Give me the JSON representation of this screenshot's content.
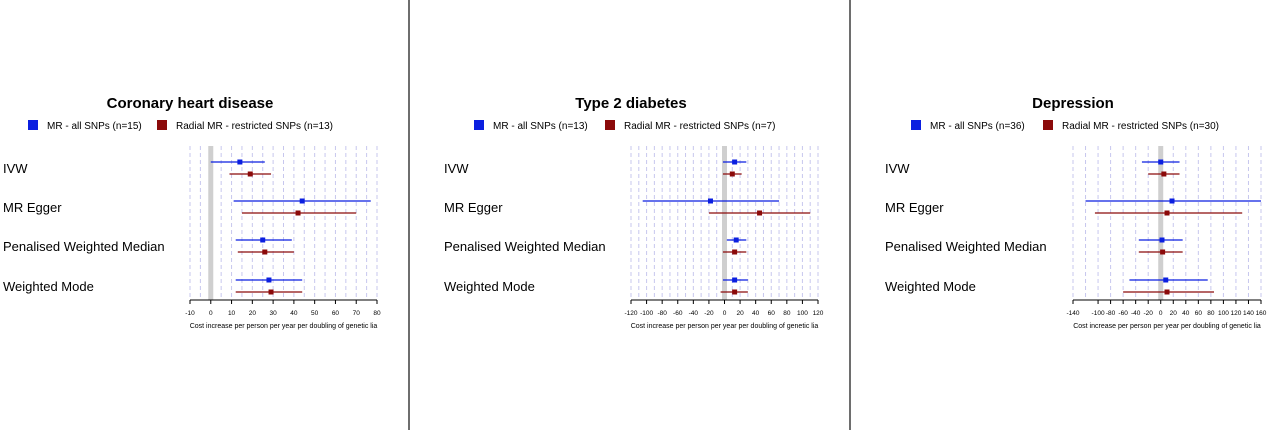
{
  "colors": {
    "series_all": "#0b1fe0",
    "series_restricted": "#8b0a0a",
    "zero_line": "#cfcfcf",
    "grid": "#c7c7ee"
  },
  "chart_data": [
    {
      "type": "forest",
      "title": "Coronary heart disease",
      "xlabel": "Cost increase per person per year per doubling of genetic lia",
      "xlim": [
        -10,
        80
      ],
      "ticks": [
        -10,
        0,
        10,
        20,
        30,
        40,
        50,
        60,
        70,
        80
      ],
      "gridlines": [
        -10,
        -5,
        0,
        5,
        10,
        15,
        20,
        25,
        30,
        35,
        40,
        45,
        50,
        55,
        60,
        65,
        70,
        75,
        80
      ],
      "categories": [
        "IVW",
        "MR Egger",
        "Penalised Weighted Median",
        "Weighted Mode"
      ],
      "series": [
        {
          "name": "MR - all SNPs (n=15)",
          "estimate": [
            14,
            44,
            25,
            28
          ],
          "lower": [
            0,
            11,
            12,
            12
          ],
          "upper": [
            26,
            77,
            39,
            44
          ]
        },
        {
          "name": "Radial MR - restricted SNPs (n=13)",
          "estimate": [
            19,
            42,
            26,
            29
          ],
          "lower": [
            9,
            15,
            13,
            12
          ],
          "upper": [
            29,
            70,
            40,
            44
          ]
        }
      ]
    },
    {
      "type": "forest",
      "title": "Type 2 diabetes",
      "xlabel": "Cost increase per person per year per doubling of genetic lia",
      "xlim": [
        -120,
        120
      ],
      "ticks": [
        -120,
        -100,
        -80,
        -60,
        -40,
        -20,
        0,
        20,
        40,
        60,
        80,
        100,
        120
      ],
      "gridlines": [
        -120,
        -110,
        -100,
        -90,
        -80,
        -70,
        -60,
        -50,
        -40,
        -30,
        -20,
        -10,
        0,
        10,
        20,
        30,
        40,
        50,
        60,
        70,
        80,
        90,
        100,
        110,
        120
      ],
      "categories": [
        "IVW",
        "MR Egger",
        "Penalised Weighted Median",
        "Weighted Mode"
      ],
      "series": [
        {
          "name": "MR - all SNPs (n=13)",
          "estimate": [
            13,
            -18,
            15,
            13
          ],
          "lower": [
            -2,
            -105,
            3,
            -2
          ],
          "upper": [
            28,
            70,
            28,
            30
          ]
        },
        {
          "name": "Radial MR - restricted SNPs (n=7)",
          "estimate": [
            10,
            45,
            13,
            13
          ],
          "lower": [
            -2,
            -20,
            -2,
            -5
          ],
          "upper": [
            22,
            110,
            28,
            30
          ]
        }
      ]
    },
    {
      "type": "forest",
      "title": "Depression",
      "xlabel": "Cost increase per person per year per doubling of genetic lia",
      "xlim": [
        -140,
        160
      ],
      "ticks": [
        -140,
        -100,
        -80,
        -60,
        -40,
        -20,
        0,
        20,
        40,
        60,
        80,
        100,
        120,
        140,
        160
      ],
      "gridlines": [
        -140,
        -120,
        -100,
        -80,
        -60,
        -40,
        -20,
        0,
        20,
        40,
        60,
        80,
        100,
        120,
        140,
        160
      ],
      "categories": [
        "IVW",
        "MR Egger",
        "Penalised Weighted Median",
        "Weighted Mode"
      ],
      "series": [
        {
          "name": "MR - all SNPs (n=36)",
          "estimate": [
            0,
            18,
            2,
            8
          ],
          "lower": [
            -30,
            -120,
            -35,
            -50
          ],
          "upper": [
            30,
            160,
            35,
            75
          ]
        },
        {
          "name": "Radial MR - restricted SNPs (n=30)",
          "estimate": [
            5,
            10,
            3,
            10
          ],
          "lower": [
            -20,
            -105,
            -35,
            -60
          ],
          "upper": [
            30,
            130,
            35,
            85
          ]
        }
      ]
    }
  ]
}
